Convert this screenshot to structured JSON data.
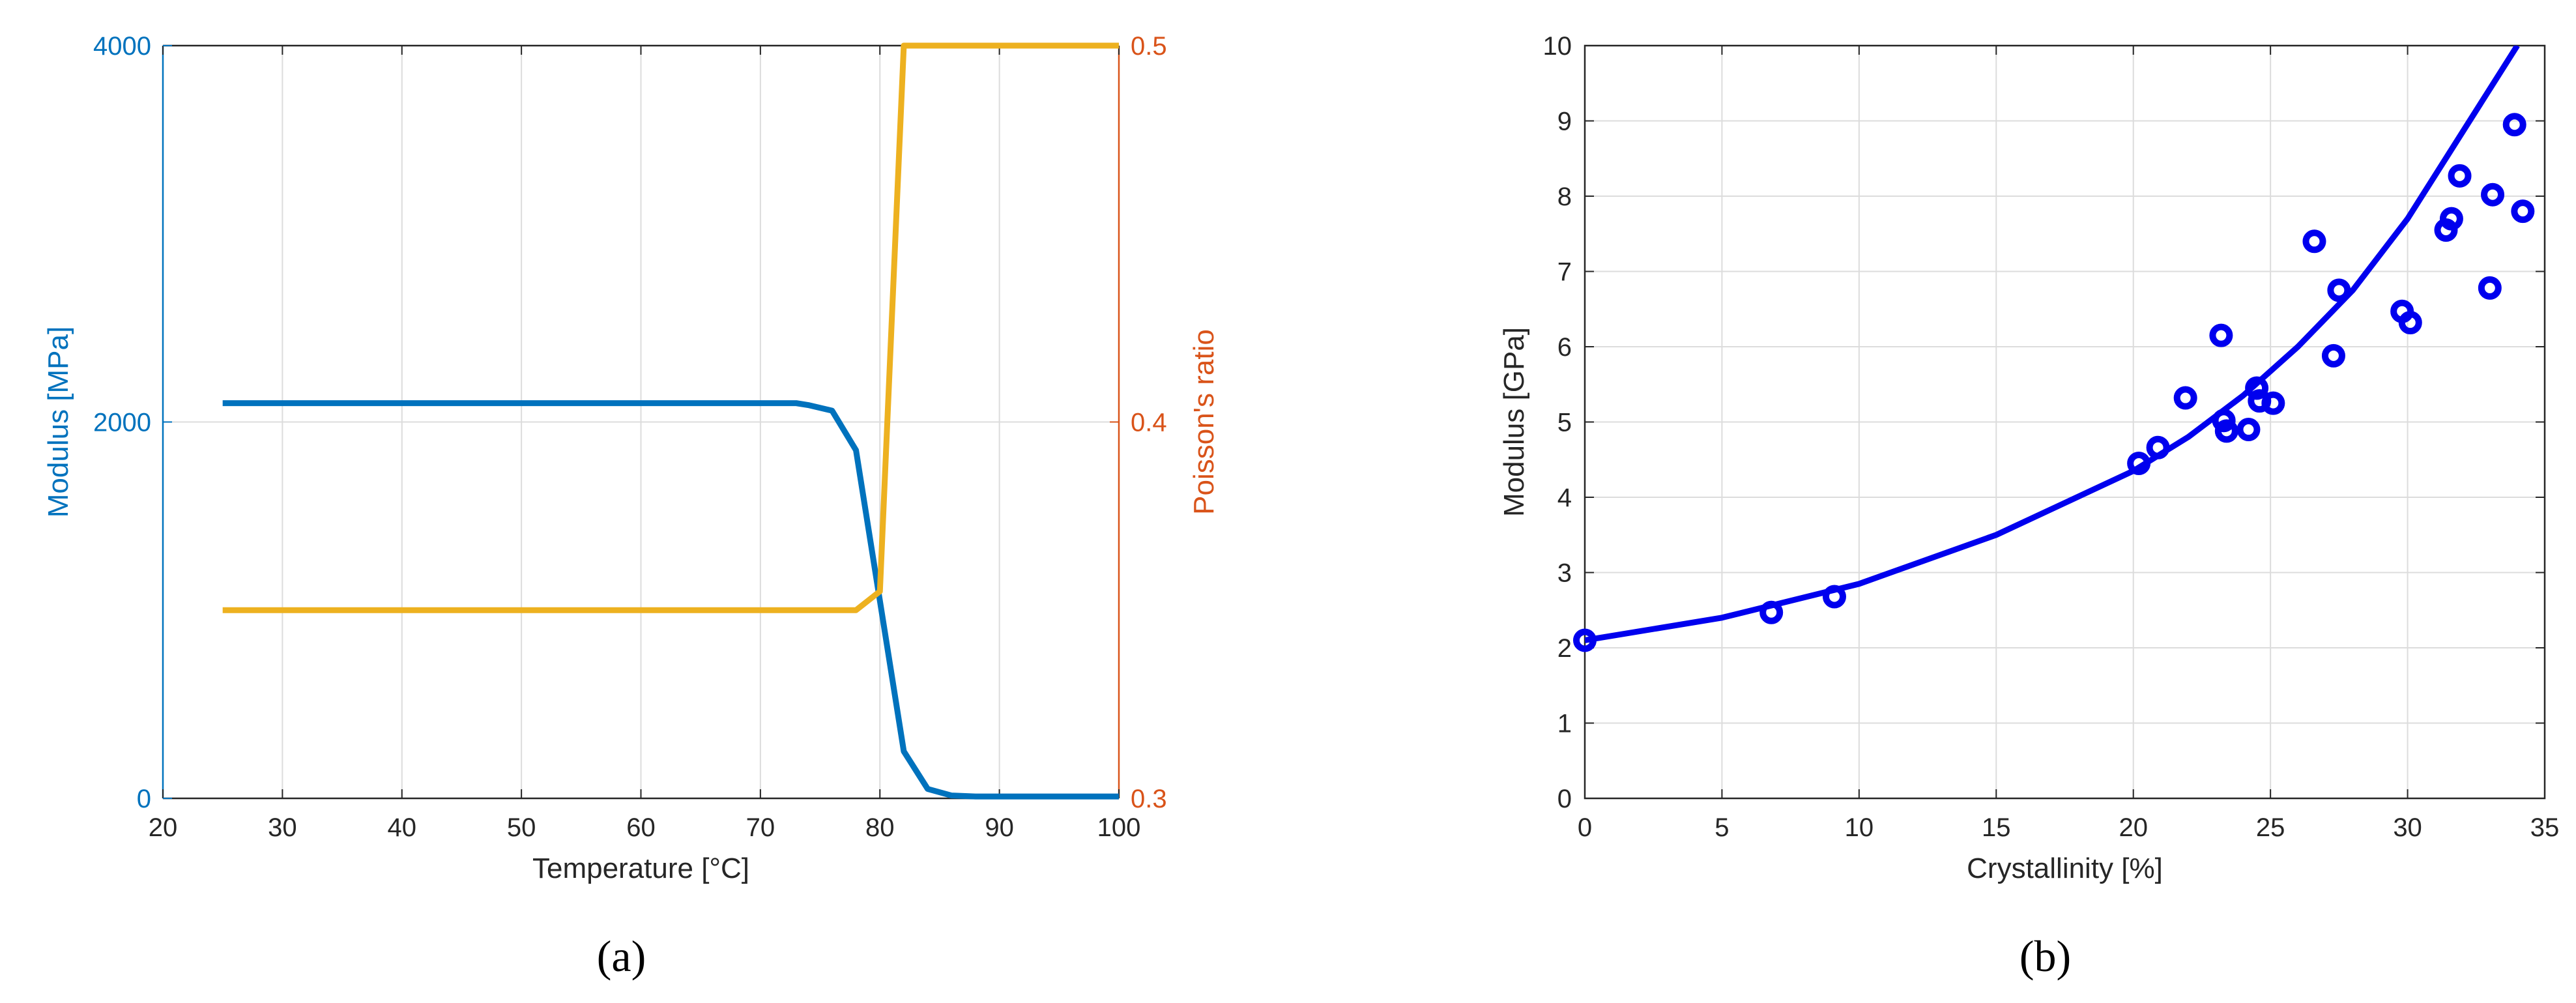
{
  "chart_data": [
    {
      "type": "line",
      "panel_label": "(a)",
      "xlabel": "Temperature [°C]",
      "ylabel_left": "Modulus [MPa]",
      "ylabel_right": "Poisson's ratio",
      "xlim": [
        20,
        100
      ],
      "ylim_left": [
        0,
        4000
      ],
      "ylim_right": [
        0.3,
        0.5
      ],
      "xticks": [
        20,
        30,
        40,
        50,
        60,
        70,
        80,
        90,
        100
      ],
      "yticks_left": [
        0,
        2000,
        4000
      ],
      "yticks_right": [
        0.3,
        0.4,
        0.5
      ],
      "grid": true,
      "colors": {
        "left_axis": "#0072BD",
        "right_axis": "#D95319",
        "modulus_line": "#0072BD",
        "poisson_line": "#EDB120"
      },
      "series": [
        {
          "axis": "left",
          "x": [
            25,
            30,
            40,
            50,
            60,
            70,
            73,
            74,
            76,
            78,
            80,
            82,
            84,
            86,
            88,
            90,
            100
          ],
          "values": [
            2100,
            2100,
            2100,
            2100,
            2100,
            2100,
            2100,
            2090,
            2060,
            1850,
            1050,
            250,
            50,
            15,
            10,
            10,
            10
          ]
        },
        {
          "axis": "right",
          "x": [
            25,
            30,
            40,
            50,
            60,
            70,
            78,
            80,
            82,
            84,
            90,
            100
          ],
          "values": [
            0.35,
            0.35,
            0.35,
            0.35,
            0.35,
            0.35,
            0.35,
            0.355,
            0.5,
            0.5,
            0.5,
            0.5
          ]
        }
      ]
    },
    {
      "type": "scatter",
      "panel_label": "(b)",
      "xlabel": "Crystallinity  [%]",
      "ylabel": "Modulus [GPa]",
      "xlim": [
        0,
        35
      ],
      "ylim": [
        0,
        10
      ],
      "xticks": [
        0,
        5,
        10,
        15,
        20,
        25,
        30,
        35
      ],
      "yticks": [
        0,
        1,
        2,
        3,
        4,
        5,
        6,
        7,
        8,
        9,
        10
      ],
      "grid": true,
      "colors": {
        "marker": "#0000EE",
        "fit_line": "#0000EE"
      },
      "points": [
        [
          0,
          2.1
        ],
        [
          6.8,
          2.47
        ],
        [
          9.1,
          2.68
        ],
        [
          20.2,
          4.45
        ],
        [
          20.9,
          4.66
        ],
        [
          21.9,
          5.32
        ],
        [
          23.2,
          6.15
        ],
        [
          23.3,
          5.02
        ],
        [
          23.4,
          4.88
        ],
        [
          24.2,
          4.9
        ],
        [
          24.5,
          5.45
        ],
        [
          24.6,
          5.28
        ],
        [
          25.1,
          5.25
        ],
        [
          26.6,
          7.4
        ],
        [
          27.3,
          5.88
        ],
        [
          27.5,
          6.75
        ],
        [
          29.8,
          6.47
        ],
        [
          30.1,
          6.32
        ],
        [
          31.4,
          7.55
        ],
        [
          31.6,
          7.7
        ],
        [
          31.9,
          8.27
        ],
        [
          33.0,
          6.78
        ],
        [
          33.1,
          8.02
        ],
        [
          33.9,
          8.95
        ],
        [
          34.2,
          7.8
        ]
      ],
      "fit_curve": {
        "x": [
          0,
          5,
          10,
          15,
          20,
          22,
          24,
          26,
          28,
          30,
          32,
          34.0
        ],
        "values": [
          2.1,
          2.4,
          2.85,
          3.5,
          4.35,
          4.8,
          5.35,
          6.0,
          6.75,
          7.7,
          8.85,
          10.0
        ]
      }
    }
  ]
}
